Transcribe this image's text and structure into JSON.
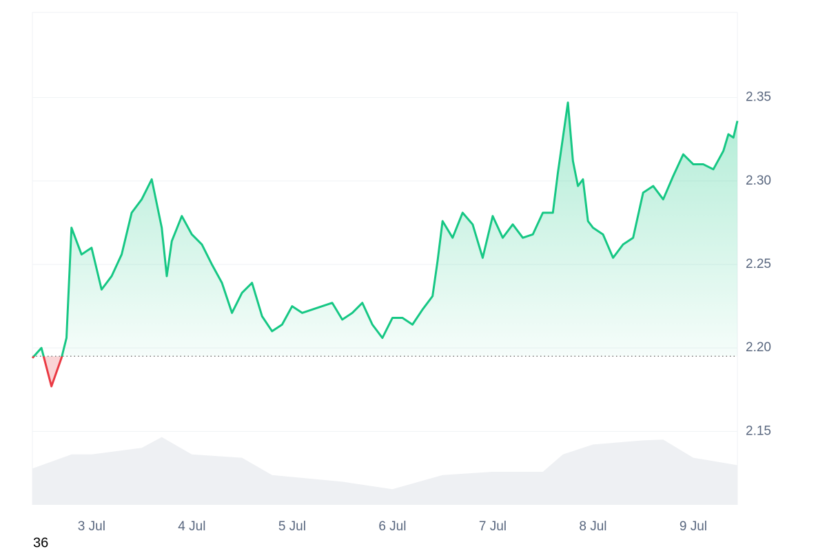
{
  "chart_data": {
    "type": "line",
    "series": [
      {
        "color": "#16c784",
        "below_color": "#ea3943",
        "x": [
          2.41,
          2.5,
          2.6,
          2.7,
          2.75,
          2.8,
          2.9,
          3.0,
          3.1,
          3.2,
          3.3,
          3.4,
          3.5,
          3.6,
          3.7,
          3.75,
          3.8,
          3.9,
          4.0,
          4.1,
          4.2,
          4.3,
          4.4,
          4.5,
          4.6,
          4.7,
          4.8,
          4.9,
          5.0,
          5.1,
          5.2,
          5.3,
          5.4,
          5.5,
          5.6,
          5.7,
          5.8,
          5.9,
          6.0,
          6.1,
          6.2,
          6.3,
          6.4,
          6.45,
          6.5,
          6.6,
          6.7,
          6.8,
          6.9,
          7.0,
          7.1,
          7.2,
          7.3,
          7.4,
          7.5,
          7.6,
          7.65,
          7.7,
          7.75,
          7.8,
          7.85,
          7.9,
          7.95,
          8.0,
          8.1,
          8.2,
          8.3,
          8.4,
          8.5,
          8.6,
          8.7,
          8.8,
          8.9,
          9.0,
          9.1,
          9.2,
          9.3,
          9.35,
          9.4,
          9.44
        ],
        "values": [
          2.194,
          2.2,
          2.177,
          2.194,
          2.206,
          2.272,
          2.256,
          2.26,
          2.235,
          2.243,
          2.256,
          2.281,
          2.289,
          2.301,
          2.272,
          2.243,
          2.264,
          2.279,
          2.268,
          2.262,
          2.25,
          2.239,
          2.221,
          2.233,
          2.239,
          2.219,
          2.21,
          2.214,
          2.225,
          2.221,
          2.223,
          2.225,
          2.227,
          2.217,
          2.221,
          2.227,
          2.214,
          2.206,
          2.218,
          2.218,
          2.214,
          2.223,
          2.231,
          2.252,
          2.276,
          2.266,
          2.281,
          2.274,
          2.254,
          2.279,
          2.266,
          2.274,
          2.266,
          2.268,
          2.281,
          2.281,
          2.305,
          2.326,
          2.347,
          2.312,
          2.297,
          2.301,
          2.276,
          2.272,
          2.268,
          2.254,
          2.262,
          2.266,
          2.293,
          2.297,
          2.289,
          2.303,
          2.316,
          2.31,
          2.31,
          2.307,
          2.318,
          2.328,
          2.326,
          2.336
        ]
      }
    ],
    "baseline": 2.195,
    "volume": {
      "color": "#eef0f3",
      "x": [
        2.41,
        2.8,
        3.0,
        3.5,
        3.7,
        4.0,
        4.5,
        4.8,
        5.5,
        6.0,
        6.5,
        7.0,
        7.5,
        7.7,
        8.0,
        8.5,
        8.7,
        9.0,
        9.44
      ],
      "values": [
        44,
        61,
        61,
        69,
        82,
        61,
        57,
        36,
        28,
        19,
        36,
        40,
        40,
        61,
        73,
        78,
        79,
        57,
        48
      ],
      "ylim": [
        0,
        100
      ]
    },
    "xlim": [
      2.41,
      9.44
    ],
    "xticks": [
      {
        "value": 3,
        "label": "3 Jul"
      },
      {
        "value": 4,
        "label": "4 Jul"
      },
      {
        "value": 5,
        "label": "5 Jul"
      },
      {
        "value": 6,
        "label": "6 Jul"
      },
      {
        "value": 7,
        "label": "7 Jul"
      },
      {
        "value": 8,
        "label": "8 Jul"
      },
      {
        "value": 9,
        "label": "9 Jul"
      }
    ],
    "ylim": [
      2.106,
      2.401
    ],
    "yticks": [
      {
        "value": 2.15,
        "label": "2.15"
      },
      {
        "value": 2.2,
        "label": "2.20"
      },
      {
        "value": 2.25,
        "label": "2.25"
      },
      {
        "value": 2.3,
        "label": "2.30"
      },
      {
        "value": 2.35,
        "label": "2.35"
      }
    ],
    "grid": true,
    "footer_text": "36"
  }
}
